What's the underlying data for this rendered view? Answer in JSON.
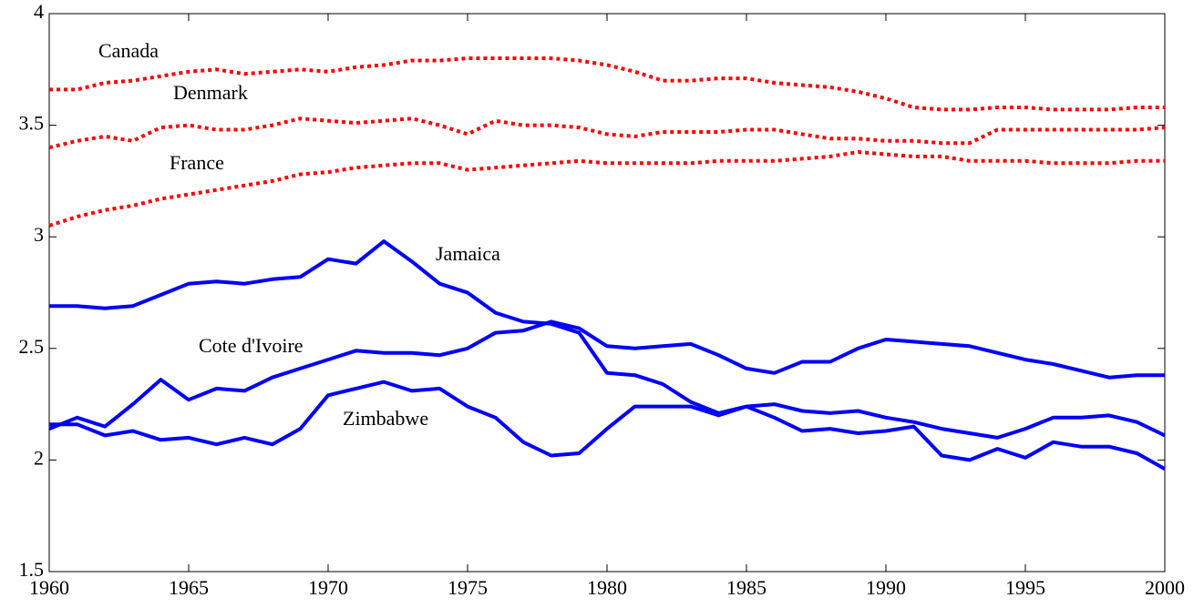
{
  "chart_data": {
    "type": "line",
    "x": [
      1960,
      1961,
      1962,
      1963,
      1964,
      1965,
      1966,
      1967,
      1968,
      1969,
      1970,
      1971,
      1972,
      1973,
      1974,
      1975,
      1976,
      1977,
      1978,
      1979,
      1980,
      1981,
      1982,
      1983,
      1984,
      1985,
      1986,
      1987,
      1988,
      1989,
      1990,
      1991,
      1992,
      1993,
      1994,
      1995,
      1996,
      1997,
      1998,
      1999,
      2000
    ],
    "xlim": [
      1960,
      2000
    ],
    "xticks": [
      1960,
      1965,
      1970,
      1975,
      1980,
      1985,
      1990,
      1995,
      2000
    ],
    "ylim": [
      1.5,
      4
    ],
    "yticks": [
      1.5,
      2,
      2.5,
      3,
      3.5,
      4
    ],
    "series": [
      {
        "name": "Canada",
        "color": "#ff0000",
        "linestyle": "dotted",
        "values": [
          3.66,
          3.66,
          3.69,
          3.7,
          3.72,
          3.74,
          3.75,
          3.73,
          3.74,
          3.75,
          3.74,
          3.76,
          3.77,
          3.79,
          3.79,
          3.8,
          3.8,
          3.8,
          3.8,
          3.79,
          3.77,
          3.74,
          3.7,
          3.7,
          3.71,
          3.71,
          3.69,
          3.68,
          3.67,
          3.65,
          3.62,
          3.58,
          3.57,
          3.57,
          3.58,
          3.58,
          3.57,
          3.57,
          3.57,
          3.58,
          3.58
        ]
      },
      {
        "name": "Denmark",
        "color": "#ff0000",
        "linestyle": "dotted",
        "values": [
          3.4,
          3.43,
          3.45,
          3.43,
          3.49,
          3.5,
          3.48,
          3.48,
          3.5,
          3.53,
          3.52,
          3.51,
          3.52,
          3.53,
          3.5,
          3.46,
          3.52,
          3.5,
          3.5,
          3.49,
          3.46,
          3.45,
          3.47,
          3.47,
          3.47,
          3.48,
          3.48,
          3.46,
          3.44,
          3.44,
          3.43,
          3.43,
          3.42,
          3.42,
          3.48,
          3.48,
          3.48,
          3.48,
          3.48,
          3.48,
          3.49
        ]
      },
      {
        "name": "France",
        "color": "#ff0000",
        "linestyle": "dotted",
        "values": [
          3.05,
          3.09,
          3.12,
          3.14,
          3.17,
          3.19,
          3.21,
          3.23,
          3.25,
          3.28,
          3.29,
          3.31,
          3.32,
          3.33,
          3.33,
          3.3,
          3.31,
          3.32,
          3.33,
          3.34,
          3.33,
          3.33,
          3.33,
          3.33,
          3.34,
          3.34,
          3.34,
          3.35,
          3.36,
          3.38,
          3.37,
          3.36,
          3.36,
          3.34,
          3.34,
          3.34,
          3.33,
          3.33,
          3.33,
          3.34,
          3.34
        ]
      },
      {
        "name": "Jamaica",
        "color": "#0000ff",
        "linestyle": "solid",
        "values": [
          2.69,
          2.69,
          2.68,
          2.69,
          2.74,
          2.79,
          2.8,
          2.79,
          2.81,
          2.82,
          2.9,
          2.88,
          2.98,
          2.89,
          2.79,
          2.75,
          2.66,
          2.62,
          2.61,
          2.57,
          2.39,
          2.38,
          2.34,
          2.26,
          2.21,
          2.24,
          2.19,
          2.13,
          2.14,
          2.12,
          2.13,
          2.15,
          2.02,
          2.0,
          2.05,
          2.01,
          2.08,
          2.06,
          2.06,
          2.03,
          1.96
        ]
      },
      {
        "name": "Cote d'Ivoire",
        "color": "#0000ff",
        "linestyle": "solid",
        "values": [
          2.14,
          2.19,
          2.15,
          2.25,
          2.36,
          2.27,
          2.32,
          2.31,
          2.37,
          2.41,
          2.45,
          2.49,
          2.48,
          2.48,
          2.47,
          2.5,
          2.57,
          2.58,
          2.62,
          2.59,
          2.51,
          2.5,
          2.51,
          2.52,
          2.47,
          2.41,
          2.39,
          2.44,
          2.44,
          2.5,
          2.54,
          2.53,
          2.52,
          2.51,
          2.48,
          2.45,
          2.43,
          2.4,
          2.37,
          2.38,
          2.38
        ]
      },
      {
        "name": "Zimbabwe",
        "color": "#0000ff",
        "linestyle": "solid",
        "values": [
          2.16,
          2.16,
          2.11,
          2.13,
          2.09,
          2.1,
          2.07,
          2.1,
          2.07,
          2.14,
          2.29,
          2.32,
          2.35,
          2.31,
          2.32,
          2.24,
          2.19,
          2.08,
          2.02,
          2.03,
          2.14,
          2.24,
          2.24,
          2.24,
          2.2,
          2.24,
          2.25,
          2.22,
          2.21,
          2.22,
          2.19,
          2.17,
          2.14,
          2.12,
          2.1,
          2.14,
          2.19,
          2.19,
          2.2,
          2.17,
          2.11
        ]
      }
    ]
  }
}
